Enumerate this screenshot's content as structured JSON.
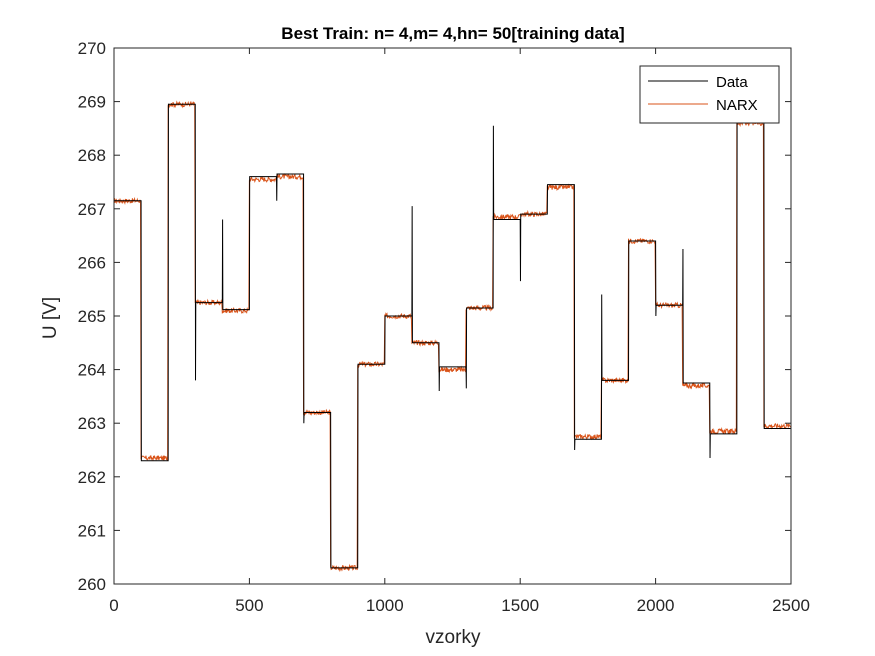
{
  "chart_data": {
    "type": "line",
    "title": "Best Train: n= 4,m= 4,hn= 50[training data]",
    "xlabel": "vzorky",
    "ylabel": "U [V]",
    "xlim": [
      0,
      2500
    ],
    "ylim": [
      260,
      270
    ],
    "xticks": [
      0,
      500,
      1000,
      1500,
      2000,
      2500
    ],
    "xtick_labels": [
      "0",
      "500",
      "1000",
      "1500",
      "2000",
      "2500"
    ],
    "yticks": [
      260,
      261,
      262,
      263,
      264,
      265,
      266,
      267,
      268,
      269,
      270
    ],
    "ytick_labels": [
      "260",
      "261",
      "262",
      "263",
      "264",
      "265",
      "266",
      "267",
      "268",
      "269",
      "270"
    ],
    "grid": false,
    "legend_position": "top-right",
    "series": [
      {
        "name": "Data",
        "color": "#000000",
        "levels": [
          267.15,
          262.3,
          268.95,
          265.25,
          265.12,
          267.6,
          267.65,
          263.2,
          260.3,
          264.1,
          265.0,
          264.5,
          264.05,
          265.15,
          266.8,
          266.9,
          267.45,
          262.7,
          263.8,
          266.4,
          265.2,
          263.75,
          262.8,
          268.6,
          262.9
        ],
        "spikes": [
          {
            "x": 300,
            "y": 263.8
          },
          {
            "x": 400,
            "y": 266.8
          },
          {
            "x": 600,
            "y": 267.15
          },
          {
            "x": 700,
            "y": 263.0
          },
          {
            "x": 1100,
            "y": 267.05
          },
          {
            "x": 1200,
            "y": 263.6
          },
          {
            "x": 1300,
            "y": 263.65
          },
          {
            "x": 1400,
            "y": 268.55
          },
          {
            "x": 1500,
            "y": 265.65
          },
          {
            "x": 1700,
            "y": 262.5
          },
          {
            "x": 1800,
            "y": 265.4
          },
          {
            "x": 2000,
            "y": 265.0
          },
          {
            "x": 2100,
            "y": 266.25
          },
          {
            "x": 2200,
            "y": 262.35
          }
        ]
      },
      {
        "name": "NARX",
        "color": "#d95319",
        "levels": [
          267.15,
          262.35,
          268.95,
          265.25,
          265.1,
          267.55,
          267.6,
          263.2,
          260.3,
          264.1,
          265.0,
          264.5,
          264.0,
          265.15,
          266.85,
          266.9,
          267.4,
          262.75,
          263.8,
          266.4,
          265.2,
          263.7,
          262.85,
          268.6,
          262.95
        ]
      }
    ]
  }
}
